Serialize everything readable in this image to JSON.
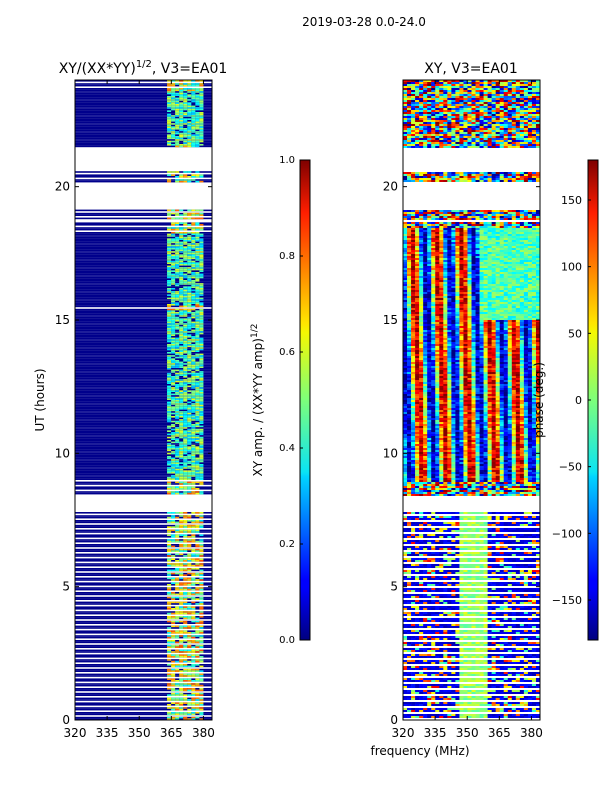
{
  "figure": {
    "suptitle": "2019-03-28 0.0-24.0"
  },
  "colors": {
    "background": "#ffffff",
    "frame": "#000000",
    "flag_blue": "#00008c"
  },
  "chart_data": [
    {
      "type": "heatmap",
      "title_main": "XY/(XX*YY)",
      "title_sup": "1/2",
      "title_tail": ", V3=EA01",
      "xlabel": "",
      "ylabel": "UT (hours)",
      "xlim": [
        320,
        384
      ],
      "ylim": [
        0,
        24
      ],
      "xticks": [
        320,
        335,
        350,
        365,
        380
      ],
      "yticks": [
        0,
        5,
        10,
        15,
        20
      ],
      "colorbar": {
        "label_main": "XY amp. / (XX*YY amp)",
        "label_sup": "1/2",
        "range": [
          0.0,
          1.0
        ],
        "ticks": [
          "0.0",
          "0.2",
          "0.4",
          "0.6",
          "0.8",
          "1.0"
        ],
        "colormap": "jet"
      },
      "data_gaps_hours": [
        [
          19.2,
          20.2
        ],
        [
          20.6,
          21.5
        ],
        [
          7.8,
          8.4
        ],
        [
          18.7,
          18.8
        ]
      ],
      "dense_blocks_hours": [
        [
          15.6,
          18.3
        ],
        [
          9.0,
          15.4
        ],
        [
          21.6,
          23.6
        ]
      ],
      "high_value_band_mhz": [
        363,
        380
      ]
    },
    {
      "type": "heatmap",
      "title": "XY, V3=EA01",
      "xlabel": "frequency (MHz)",
      "ylabel": "",
      "xlim": [
        320,
        384
      ],
      "ylim": [
        0,
        24
      ],
      "xticks": [
        320,
        335,
        350,
        365,
        380
      ],
      "yticks": [
        0,
        5,
        10,
        15,
        20
      ],
      "colorbar": {
        "label": "phase (deg.)",
        "range": [
          -180,
          180
        ],
        "ticks": [
          "150",
          "100",
          "50",
          "0",
          "−50",
          "−100",
          "−150"
        ],
        "colormap": "jet"
      },
      "data_gaps_hours": [
        [
          19.2,
          20.2
        ],
        [
          20.6,
          21.5
        ],
        [
          7.8,
          8.4
        ],
        [
          18.7,
          18.8
        ]
      ]
    }
  ]
}
